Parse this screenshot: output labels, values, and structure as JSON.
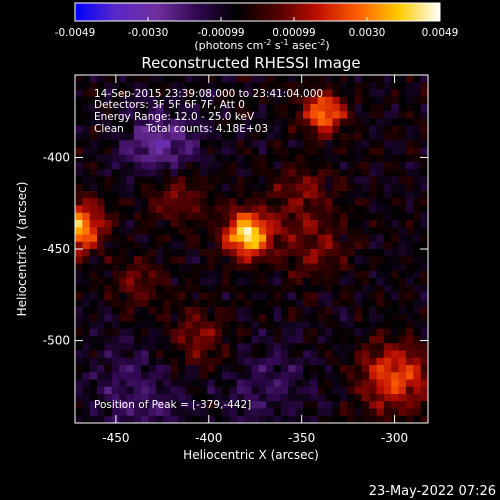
{
  "colorbar": {
    "ticks": [
      "-0.0049",
      "-0.0030",
      "-0.00099",
      "0.00099",
      "0.0030",
      "0.0049"
    ],
    "units_parts": [
      "(photons cm",
      "-2",
      " s",
      "-1",
      " asec",
      "-2",
      ")"
    ]
  },
  "annotations": {
    "line1": "14-Sep-2015 23:39:08.000 to 23:41:04.000",
    "line2": "Detectors: 3F 5F 6F 7F, Att 0",
    "line3": "Energy Range: 12.0 - 25.0 keV",
    "line4_left": "Clean",
    "line4_right": "Total counts: 4.18E+03",
    "peak": "Position of Peak = [-379,-442]"
  },
  "footer": {
    "date": "23-May-2022 07:26"
  },
  "chart_data": {
    "type": "heatmap",
    "title": "Reconstructed RHESSI Image",
    "xlabel": "Heliocentric X (arcsec)",
    "ylabel": "Heliocentric Y (arcsec)",
    "xlim": [
      -472,
      -282
    ],
    "ylim": [
      -545,
      -355
    ],
    "xticks": [
      -450,
      -400,
      -350,
      -300
    ],
    "yticks": [
      -400,
      -450,
      -500
    ],
    "xtick_labels": [
      "-450",
      "-400",
      "-350",
      "-300"
    ],
    "ytick_labels": [
      "-400",
      "-450",
      "-500"
    ],
    "color_range": [
      -0.0049,
      0.0049
    ],
    "colormap": [
      "#0000ff",
      "#5a28c8",
      "#7030a0",
      "#300850",
      "#000000",
      "#500000",
      "#c01000",
      "#ff6000",
      "#ffcc00",
      "#ffffff"
    ],
    "sources": [
      {
        "x": -379,
        "y": -442,
        "amp": 1.0,
        "sigma": 9
      },
      {
        "x": -470,
        "y": -438,
        "amp": 0.9,
        "sigma": 9
      },
      {
        "x": -338,
        "y": -376,
        "amp": 0.75,
        "sigma": 8
      },
      {
        "x": -300,
        "y": -520,
        "amp": 0.6,
        "sigma": 13
      },
      {
        "x": -418,
        "y": -418,
        "amp": 0.35,
        "sigma": 12
      },
      {
        "x": -345,
        "y": -450,
        "amp": 0.3,
        "sigma": 12
      },
      {
        "x": -405,
        "y": -500,
        "amp": 0.3,
        "sigma": 12
      },
      {
        "x": -350,
        "y": -420,
        "amp": 0.28,
        "sigma": 11
      },
      {
        "x": -438,
        "y": -468,
        "amp": 0.25,
        "sigma": 10
      },
      {
        "x": -425,
        "y": -395,
        "amp": -0.45,
        "sigma": 14
      },
      {
        "x": -440,
        "y": -530,
        "amp": -0.25,
        "sigma": 18
      },
      {
        "x": -370,
        "y": -525,
        "amp": -0.2,
        "sigma": 18
      }
    ]
  }
}
